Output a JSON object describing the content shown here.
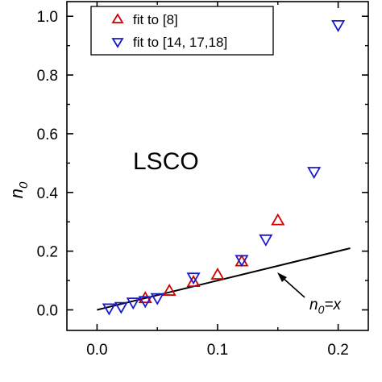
{
  "chart_data": {
    "type": "scatter",
    "xlim": [
      -0.025,
      0.225
    ],
    "ylim": [
      -0.07,
      1.05
    ],
    "x_ticks": [
      {
        "value": 0.0,
        "label": "0.0"
      },
      {
        "value": 0.1,
        "label": "0.1"
      },
      {
        "value": 0.2,
        "label": "0.2"
      }
    ],
    "y_ticks": [
      {
        "value": 0.0,
        "label": "0.0"
      },
      {
        "value": 0.2,
        "label": "0.2"
      },
      {
        "value": 0.4,
        "label": "0.4"
      },
      {
        "value": 0.6,
        "label": "0.6"
      },
      {
        "value": 0.8,
        "label": "0.8"
      },
      {
        "value": 1.0,
        "label": "1.0"
      }
    ],
    "ylabel": "n",
    "ylabel_sub": "0",
    "xlabel": "",
    "inset_label": "LSCO",
    "series": [
      {
        "name": "fit to [8]",
        "marker": "triangle-up",
        "color": "#d40000",
        "points": [
          {
            "x": 0.04,
            "y": 0.04
          },
          {
            "x": 0.06,
            "y": 0.065
          },
          {
            "x": 0.08,
            "y": 0.095
          },
          {
            "x": 0.1,
            "y": 0.12
          },
          {
            "x": 0.12,
            "y": 0.165
          },
          {
            "x": 0.15,
            "y": 0.305
          }
        ]
      },
      {
        "name": "fit to [14, 17,18]",
        "marker": "triangle-down",
        "color": "#1a1acc",
        "points": [
          {
            "x": 0.01,
            "y": 0.005
          },
          {
            "x": 0.02,
            "y": 0.01
          },
          {
            "x": 0.03,
            "y": 0.025
          },
          {
            "x": 0.04,
            "y": 0.03
          },
          {
            "x": 0.05,
            "y": 0.04
          },
          {
            "x": 0.08,
            "y": 0.11
          },
          {
            "x": 0.12,
            "y": 0.17
          },
          {
            "x": 0.14,
            "y": 0.24
          },
          {
            "x": 0.18,
            "y": 0.47
          },
          {
            "x": 0.2,
            "y": 0.97
          }
        ]
      }
    ],
    "reference_line": {
      "label_main": "n",
      "label_sub": "0",
      "label_rest": "=x",
      "x": [
        0.0,
        0.21
      ],
      "y": [
        0.0,
        0.21
      ],
      "color": "#000000"
    },
    "legend_position": "top-left",
    "grid": false
  }
}
